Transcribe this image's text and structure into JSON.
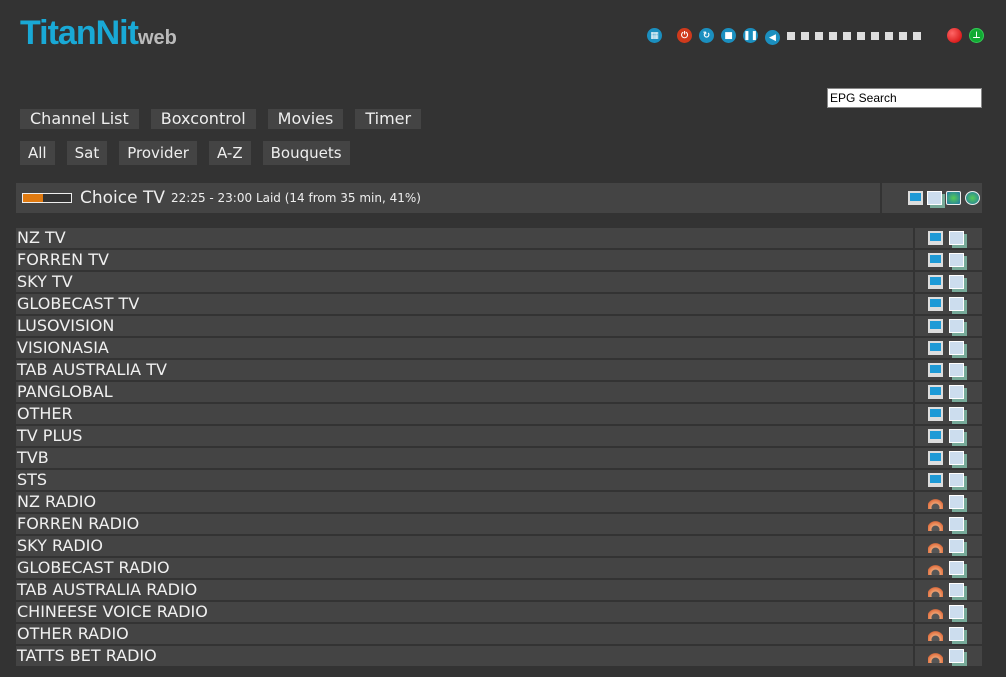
{
  "logo": {
    "main": "TitanNit",
    "suffix": "web"
  },
  "controls": {
    "icons": [
      "remote-icon",
      "power-icon",
      "restart-icon",
      "stop-icon",
      "pause-icon",
      "volume-icon"
    ],
    "volume_steps": 10,
    "volume_level": 0,
    "record_icon": "record-icon",
    "signal_icon": "signal-icon"
  },
  "epg_search": {
    "value": "EPG Search"
  },
  "nav": [
    "Channel List",
    "Boxcontrol",
    "Movies",
    "Timer"
  ],
  "filters": [
    "All",
    "Sat",
    "Provider",
    "A-Z",
    "Bouquets"
  ],
  "current": {
    "channel": "Choice TV",
    "epg": "22:25 - 23:00 Laid (14 from 35 min, 41%)",
    "progress_percent": 41,
    "progress_color": "#e07a10"
  },
  "bouquets": [
    {
      "name": "NZ TV",
      "type": "tv"
    },
    {
      "name": "FORREN TV",
      "type": "tv"
    },
    {
      "name": "SKY TV",
      "type": "tv"
    },
    {
      "name": "GLOBECAST TV",
      "type": "tv"
    },
    {
      "name": "LUSOVISION",
      "type": "tv"
    },
    {
      "name": "VISIONASIA",
      "type": "tv"
    },
    {
      "name": "TAB AUSTRALIA TV",
      "type": "tv"
    },
    {
      "name": "PANGLOBAL",
      "type": "tv"
    },
    {
      "name": "OTHER",
      "type": "tv"
    },
    {
      "name": "TV PLUS",
      "type": "tv"
    },
    {
      "name": "TVB",
      "type": "tv"
    },
    {
      "name": "STS",
      "type": "tv"
    },
    {
      "name": "NZ RADIO",
      "type": "radio"
    },
    {
      "name": "FORREN RADIO",
      "type": "radio"
    },
    {
      "name": "SKY RADIO",
      "type": "radio"
    },
    {
      "name": "GLOBECAST RADIO",
      "type": "radio"
    },
    {
      "name": "TAB AUSTRALIA RADIO",
      "type": "radio"
    },
    {
      "name": "CHINEESE VOICE RADIO",
      "type": "radio"
    },
    {
      "name": "OTHER RADIO",
      "type": "radio"
    },
    {
      "name": "TATTS BET RADIO",
      "type": "radio"
    }
  ]
}
